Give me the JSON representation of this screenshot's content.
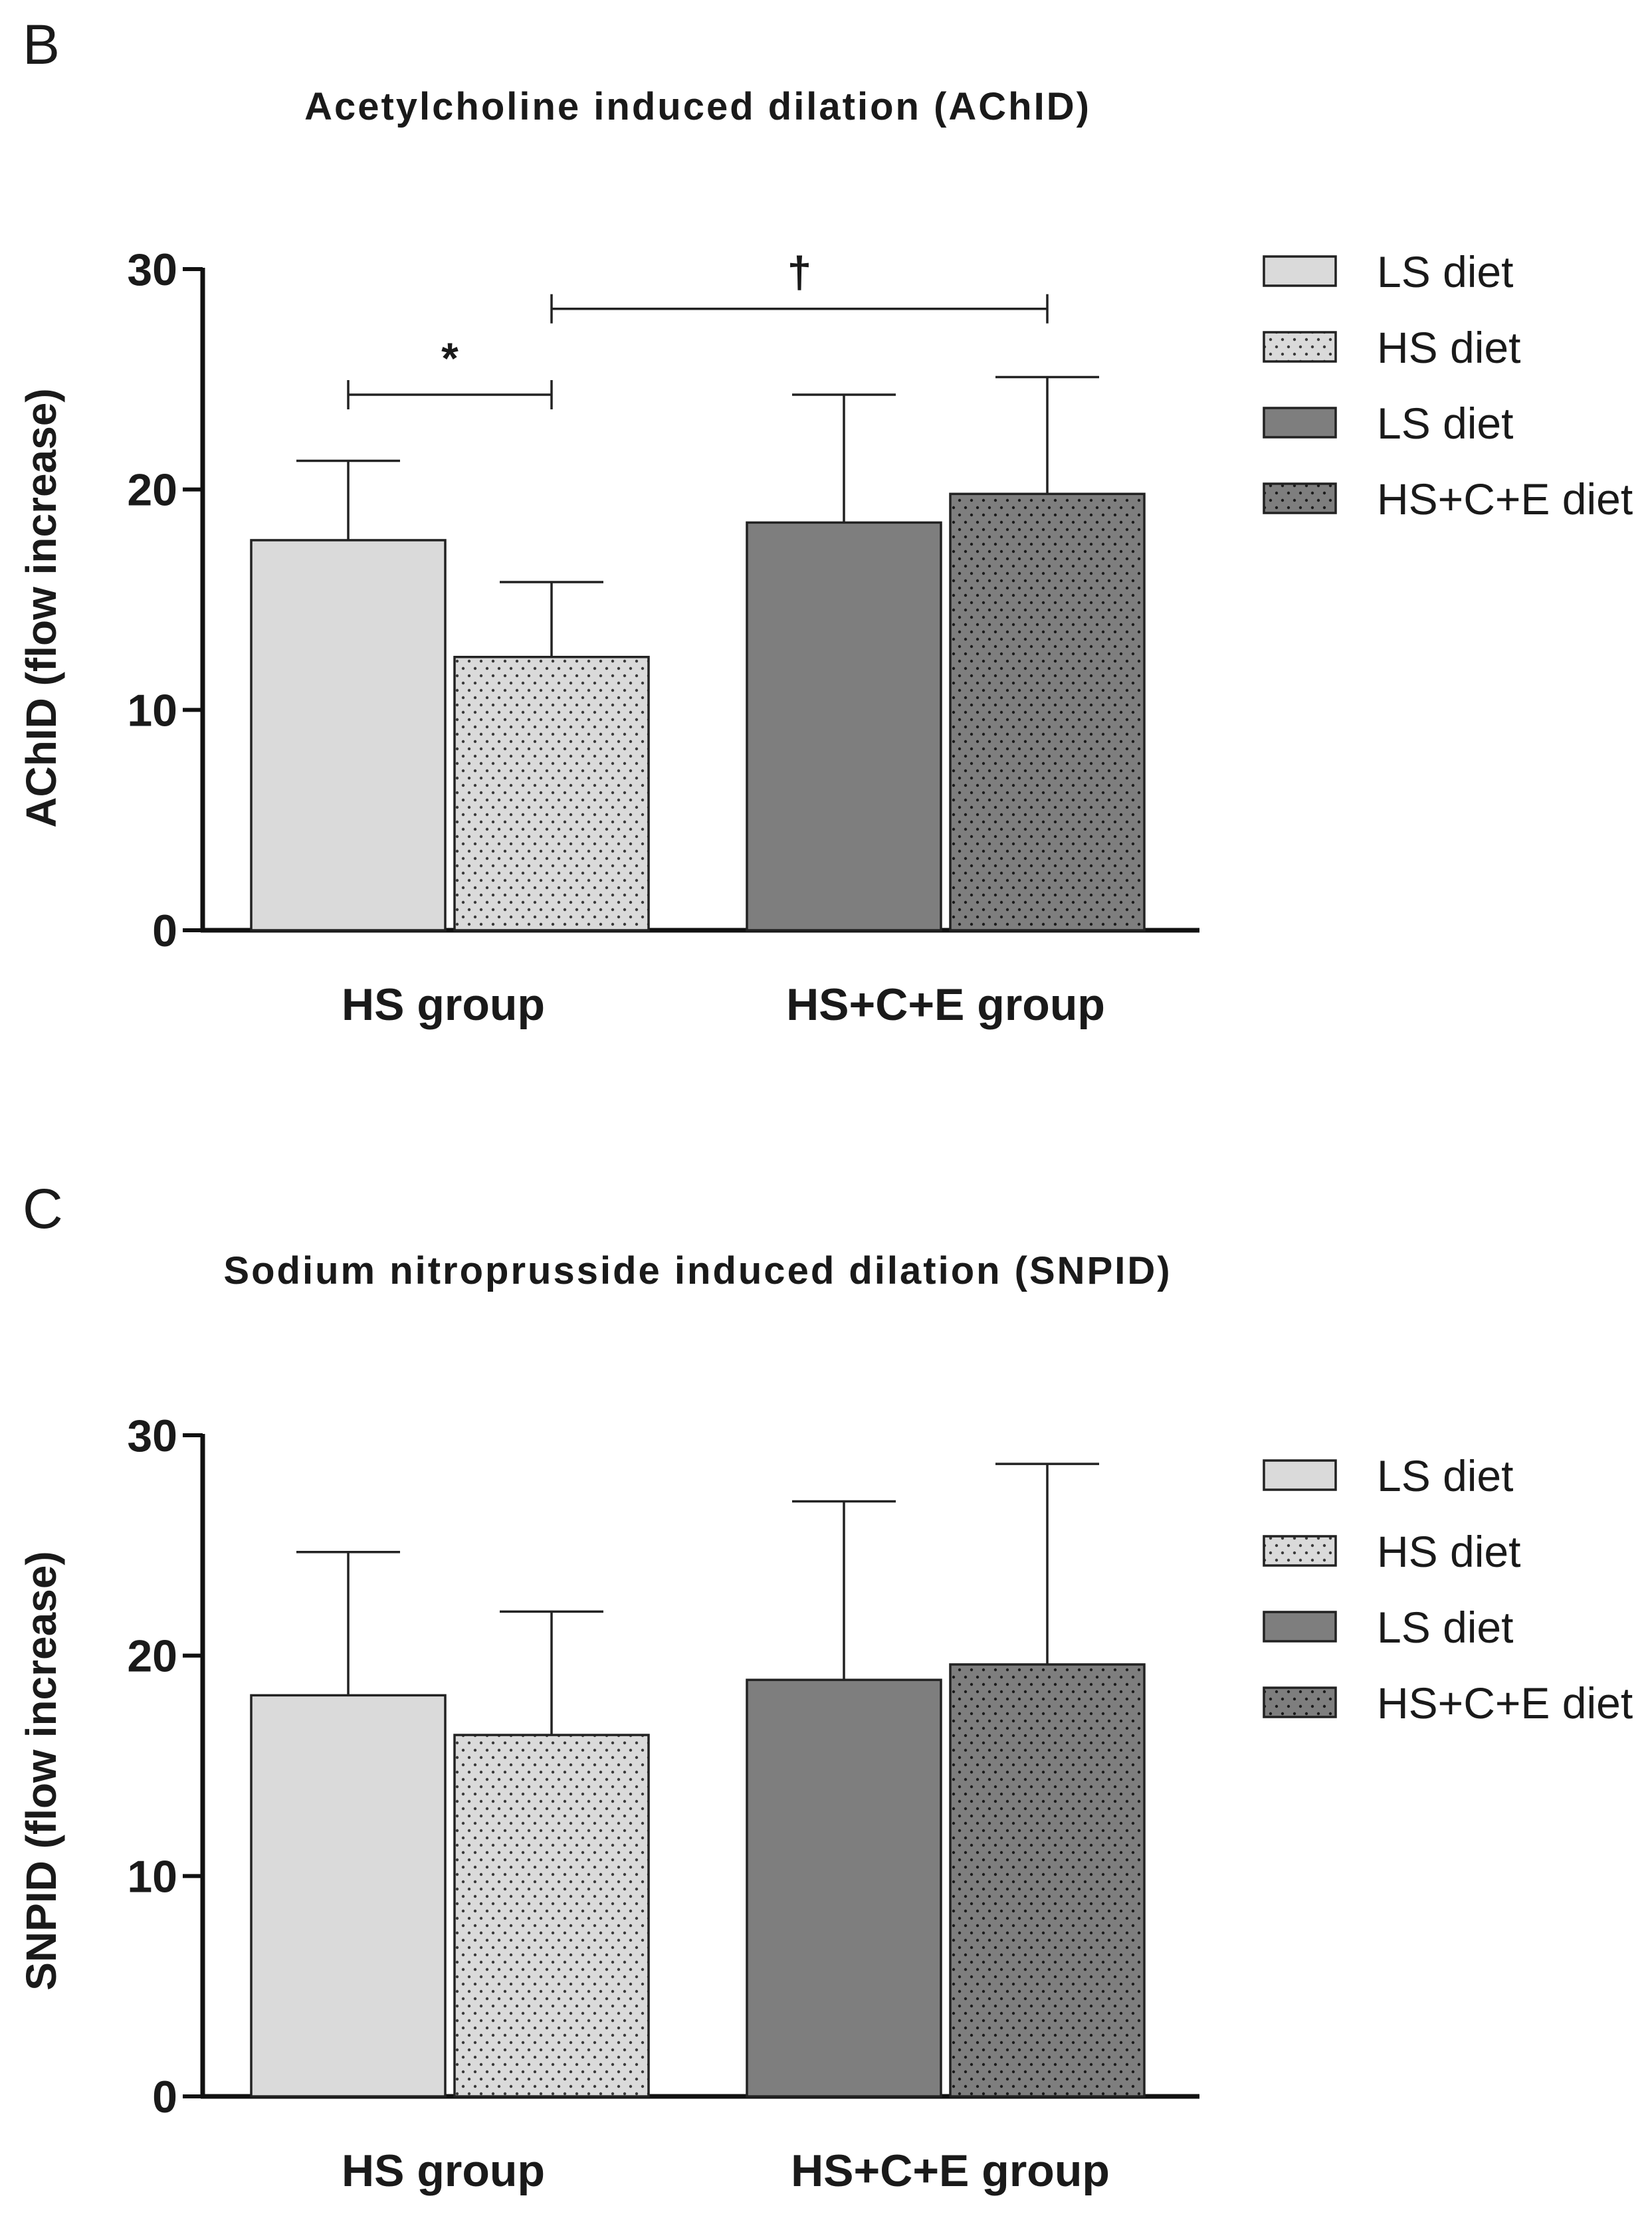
{
  "chart_data": [
    {
      "panel": "B",
      "type": "bar",
      "title": "Acetylcholine induced dilation (AChID)",
      "xlabel": "",
      "ylabel": "AChID (flow increase)",
      "ylim": [
        0,
        30
      ],
      "yticks": [
        0,
        10,
        20,
        30
      ],
      "categories": [
        "HS group",
        "HS+C+E group"
      ],
      "series": [
        {
          "name": "LS diet",
          "group": "HS group",
          "value": 17.7,
          "error": 3.6,
          "fill": "#dadada",
          "pattern": "none"
        },
        {
          "name": "HS diet",
          "group": "HS group",
          "value": 12.4,
          "error": 3.4,
          "fill": "#dadada",
          "pattern": "dots"
        },
        {
          "name": "LS diet",
          "group": "HS+C+E group",
          "value": 18.5,
          "error": 5.8,
          "fill": "#7e7e7e",
          "pattern": "none"
        },
        {
          "name": "HS+C+E diet",
          "group": "HS+C+E group",
          "value": 19.8,
          "error": 5.3,
          "fill": "#7e7e7e",
          "pattern": "dots"
        }
      ],
      "significance": [
        {
          "label": "*",
          "from_bar": 0,
          "to_bar": 1,
          "level": 24.3
        },
        {
          "label": "†",
          "from_bar": 1,
          "to_bar": 3,
          "level": 28.2
        }
      ],
      "legend_position": "right"
    },
    {
      "panel": "C",
      "type": "bar",
      "title": "Sodium nitroprusside induced dilation (SNPID)",
      "xlabel": "",
      "ylabel": "SNPID (flow increase)",
      "ylim": [
        0,
        30
      ],
      "yticks": [
        0,
        10,
        20,
        30
      ],
      "categories": [
        "HS group",
        "HS+C+E group"
      ],
      "series": [
        {
          "name": "LS diet",
          "group": "HS group",
          "value": 18.2,
          "error": 6.5,
          "fill": "#dadada",
          "pattern": "none"
        },
        {
          "name": "HS diet",
          "group": "HS group",
          "value": 16.4,
          "error": 5.6,
          "fill": "#dadada",
          "pattern": "dots"
        },
        {
          "name": "LS diet",
          "group": "HS+C+E group",
          "value": 18.9,
          "error": 8.1,
          "fill": "#7e7e7e",
          "pattern": "none"
        },
        {
          "name": "HS+C+E diet",
          "group": "HS+C+E group",
          "value": 19.6,
          "error": 9.1,
          "fill": "#7e7e7e",
          "pattern": "dots"
        }
      ],
      "significance": [],
      "legend_position": "right"
    }
  ]
}
